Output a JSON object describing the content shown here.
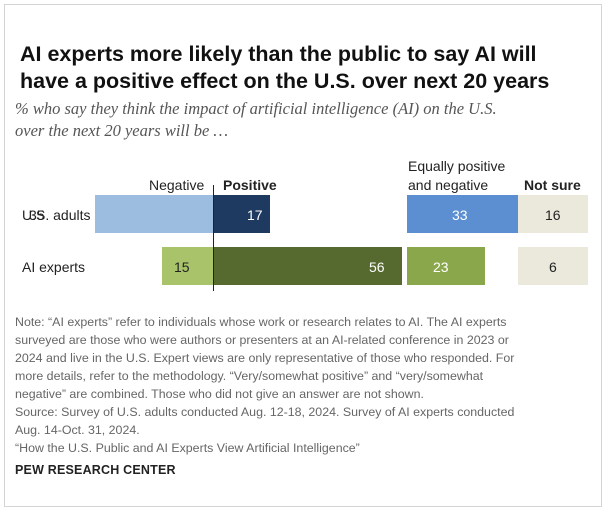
{
  "title_lines": [
    "AI experts more likely than the public to say AI will",
    "have a positive effect on the U.S. over next 20 years"
  ],
  "subtitle_lines": [
    "% who say they think the impact of artificial intelligence (AI) on the U.S.",
    "over the next 20 years will be …"
  ],
  "chart_data": {
    "type": "bar",
    "categories": [
      "U.S. adults",
      "AI experts"
    ],
    "columns": {
      "negative": "Negative",
      "positive": "Positive",
      "equal_line1": "Equally positive",
      "equal_line2": "and negative",
      "not_sure": "Not sure"
    },
    "series": [
      {
        "name": "Negative",
        "values": [
          35,
          15
        ]
      },
      {
        "name": "Positive",
        "values": [
          17,
          56
        ]
      },
      {
        "name": "Equally positive and negative",
        "values": [
          33,
          23
        ]
      },
      {
        "name": "Not sure",
        "values": [
          16,
          6
        ]
      }
    ],
    "colors": {
      "us_negative": "#9dbde0",
      "us_positive": "#1f3a61",
      "us_equal": "#5b8fd1",
      "ai_negative": "#a9c36b",
      "ai_positive": "#56692e",
      "ai_equal": "#8aa84b",
      "not_sure_bg": "#ebe8dc"
    }
  },
  "notes": [
    "Note: “AI experts” refer to individuals whose work or research relates to AI. The AI experts",
    "surveyed are those who were authors or presenters at an AI-related conference in 2023 or",
    "2024 and live in the U.S. Expert views are only representative of those who responded. For",
    "more details, refer to the methodology. “Very/somewhat positive” and “very/somewhat",
    "negative” are combined. Those who did not give an answer are not shown.",
    "Source: Survey of U.S. adults conducted Aug. 12-18, 2024. Survey of AI experts conducted",
    "Aug. 14-Oct. 31, 2024.",
    "“How the U.S. Public and AI Experts View Artificial Intelligence”"
  ],
  "brand": "PEW RESEARCH CENTER"
}
